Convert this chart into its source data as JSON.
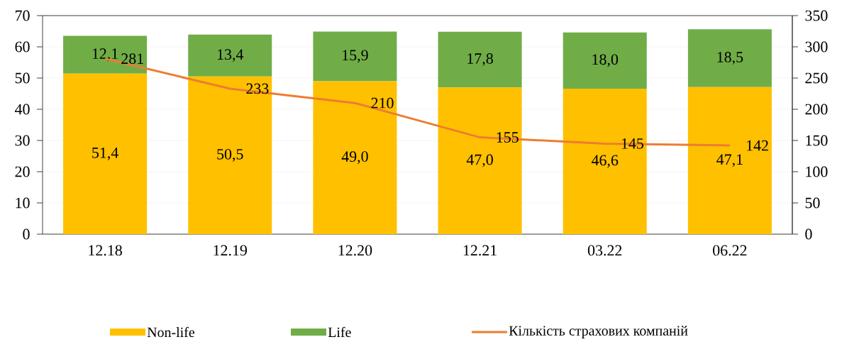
{
  "chart_data": {
    "type": "bar",
    "stacked": true,
    "categories": [
      "12.18",
      "12.19",
      "12.20",
      "12.21",
      "03.22",
      "06.22"
    ],
    "series": [
      {
        "name": "Non-life",
        "color": "#ffc000",
        "values": [
          51.4,
          50.5,
          49.0,
          47.0,
          46.6,
          47.1
        ],
        "value_labels": [
          "51,4",
          "50,5",
          "49,0",
          "47,0",
          "46,6",
          "47,1"
        ]
      },
      {
        "name": "Life",
        "color": "#70ad47",
        "values": [
          12.1,
          13.4,
          15.9,
          17.8,
          18.0,
          18.5
        ],
        "value_labels": [
          "12,1",
          "13,4",
          "15,9",
          "17,8",
          "18,0",
          "18,5"
        ]
      },
      {
        "name": "Кількість страхових компаній",
        "type": "line",
        "axis": "y2",
        "color": "#ed7d31",
        "values": [
          281,
          233,
          210,
          155,
          145,
          142
        ],
        "value_labels": [
          "281",
          "233",
          "210",
          "155",
          "145",
          "142"
        ]
      }
    ],
    "ylim": [
      0,
      70
    ],
    "yticks": [
      0,
      10,
      20,
      30,
      40,
      50,
      60,
      70
    ],
    "y2lim": [
      0,
      350
    ],
    "y2ticks": [
      0,
      50,
      100,
      150,
      200,
      250,
      300,
      350
    ],
    "grid": "y",
    "legend": "bottom"
  }
}
